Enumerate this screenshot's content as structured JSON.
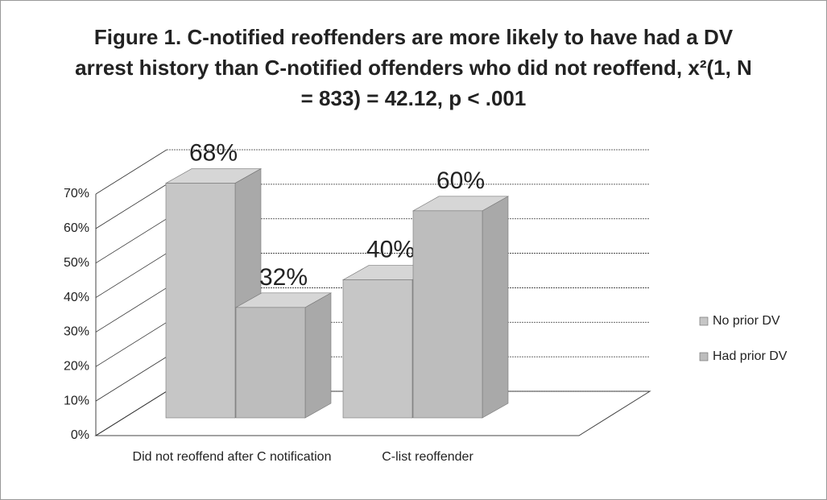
{
  "chart_data": {
    "type": "bar3d",
    "title": "Figure 1. C-notified reoffenders are more likely to have had a DV arrest history than C-notified offenders who did not reoffend, x²(1, N = 833) = 42.12, p < .001",
    "categories": [
      "Did not reoffend after C notification",
      "C-list reoffender"
    ],
    "series": [
      {
        "name": "No prior DV",
        "color": "#c6c6c6",
        "values": [
          68,
          40
        ],
        "value_labels": [
          "68%",
          "40%"
        ]
      },
      {
        "name": "Had prior DV",
        "color": "#bdbdbd",
        "values": [
          32,
          60
        ],
        "value_labels": [
          "32%",
          "60%"
        ]
      }
    ],
    "ylim": [
      0,
      70
    ],
    "yticks": [
      {
        "value": 0,
        "label": "0%"
      },
      {
        "value": 10,
        "label": "10%"
      },
      {
        "value": 20,
        "label": "20%"
      },
      {
        "value": 30,
        "label": "30%"
      },
      {
        "value": 40,
        "label": "40%"
      },
      {
        "value": 50,
        "label": "50%"
      },
      {
        "value": 60,
        "label": "60%"
      },
      {
        "value": 70,
        "label": "70%"
      }
    ],
    "grid": true,
    "legend": "right"
  }
}
